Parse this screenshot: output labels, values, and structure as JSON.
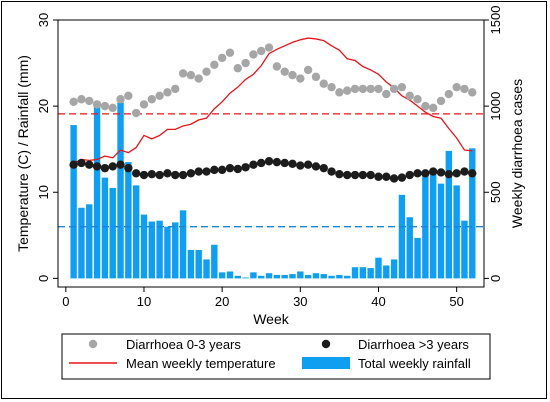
{
  "chart_data": {
    "type": "bar",
    "xlabel": "Week",
    "ylabel_left": "Temperature (C) / Rainfall (mm)",
    "ylabel_right": "Weekly diarrhoea cases",
    "x_ticks": [
      "0",
      "10",
      "20",
      "30",
      "40",
      "50"
    ],
    "x_tick_values": [
      0,
      10,
      20,
      30,
      40,
      50
    ],
    "xlim": [
      -1,
      53.5
    ],
    "y_left_ticks": [
      "0",
      "10",
      "20",
      "30"
    ],
    "y_left_tick_values": [
      0,
      10,
      20,
      30
    ],
    "ylim_left": [
      -1,
      30
    ],
    "y_right_ticks": [
      "0",
      "500",
      "1000",
      "1500"
    ],
    "y_right_tick_values": [
      0,
      500,
      1000,
      1500
    ],
    "ylim_right": [
      -50,
      1500
    ],
    "reference_lines": [
      {
        "axis": "left",
        "value": 19.1,
        "color": "#e8141b",
        "style": "dashed"
      },
      {
        "axis": "left",
        "value": 6.0,
        "color": "#1a86d8",
        "style": "dashed"
      }
    ],
    "weeks": [
      1,
      2,
      3,
      4,
      5,
      6,
      7,
      8,
      9,
      10,
      11,
      12,
      13,
      14,
      15,
      16,
      17,
      18,
      19,
      20,
      21,
      22,
      23,
      24,
      25,
      26,
      27,
      28,
      29,
      30,
      31,
      32,
      33,
      34,
      35,
      36,
      37,
      38,
      39,
      40,
      41,
      42,
      43,
      44,
      45,
      46,
      47,
      48,
      49,
      50,
      51,
      52
    ],
    "series": [
      {
        "name": "Total weekly rainfall",
        "kind": "bar",
        "axis": "left",
        "color": "#0f9ef0",
        "values": [
          17.8,
          8.2,
          8.6,
          20.4,
          11.7,
          10.5,
          20.4,
          13.5,
          10.8,
          7.4,
          6.6,
          6.7,
          6.0,
          6.5,
          7.9,
          3.3,
          3.3,
          2.2,
          3.9,
          0.7,
          0.8,
          0.3,
          0.1,
          0.7,
          0.3,
          0.6,
          0.4,
          0.4,
          0.5,
          0.8,
          0.4,
          0.6,
          0.5,
          0.3,
          0.4,
          0.3,
          1.3,
          1.3,
          1.2,
          2.4,
          1.5,
          2.2,
          9.7,
          7.1,
          4.7,
          12.2,
          12.2,
          11.0,
          14.8,
          10.8,
          6.7,
          15.1
        ]
      },
      {
        "name": "Mean weekly temperature",
        "kind": "line",
        "axis": "left",
        "color": "#e8141b",
        "values": [
          13.4,
          13.8,
          13.7,
          13.8,
          14.2,
          14.0,
          14.9,
          14.6,
          15.2,
          16.6,
          16.2,
          16.6,
          17.3,
          17.3,
          17.7,
          17.9,
          18.4,
          18.6,
          19.7,
          20.5,
          21.5,
          22.2,
          23.1,
          23.7,
          24.7,
          26.1,
          26.6,
          27.0,
          27.4,
          27.7,
          27.9,
          27.8,
          27.6,
          27.0,
          26.5,
          25.5,
          25.3,
          24.6,
          24.2,
          23.7,
          22.8,
          22.1,
          21.2,
          20.7,
          20.0,
          19.3,
          18.8,
          18.6,
          17.4,
          16.3,
          14.9,
          14.8
        ]
      },
      {
        "name": "Diarrhoea 0-3 years",
        "kind": "scatter",
        "axis": "right",
        "color": "#a6a6a6",
        "values": [
          1025,
          1040,
          1030,
          1010,
          1000,
          990,
          1040,
          1060,
          960,
          1010,
          1040,
          1060,
          1080,
          1100,
          1190,
          1180,
          1160,
          1200,
          1240,
          1280,
          1310,
          1220,
          1250,
          1300,
          1320,
          1340,
          1230,
          1200,
          1180,
          1160,
          1210,
          1170,
          1130,
          1110,
          1080,
          1090,
          1100,
          1100,
          1100,
          1100,
          1070,
          1100,
          1110,
          1060,
          1040,
          1000,
          990,
          1030,
          1070,
          1110,
          1100,
          1080
        ]
      },
      {
        "name": "Diarrhoea >3 years",
        "kind": "scatter",
        "axis": "right",
        "color": "#1c1c1c",
        "values": [
          660,
          670,
          660,
          650,
          640,
          650,
          660,
          640,
          610,
          600,
          605,
          600,
          610,
          600,
          600,
          610,
          620,
          620,
          630,
          630,
          640,
          635,
          645,
          660,
          670,
          680,
          675,
          670,
          665,
          655,
          660,
          650,
          640,
          620,
          605,
          600,
          600,
          600,
          600,
          590,
          590,
          580,
          585,
          600,
          610,
          610,
          620,
          615,
          605,
          610,
          620,
          610
        ]
      }
    ],
    "legend": {
      "placement": "bottom",
      "entries": [
        {
          "label": "Diarrhoea 0-3 years",
          "symbol": "circle",
          "color": "#a6a6a6"
        },
        {
          "label": "Diarrhoea >3 years",
          "symbol": "circle",
          "color": "#1c1c1c"
        },
        {
          "label": "Mean weekly temperature",
          "symbol": "line",
          "color": "#e8141b"
        },
        {
          "label": "Total weekly rainfall",
          "symbol": "rect",
          "color": "#0f9ef0"
        }
      ]
    },
    "grid": false
  }
}
